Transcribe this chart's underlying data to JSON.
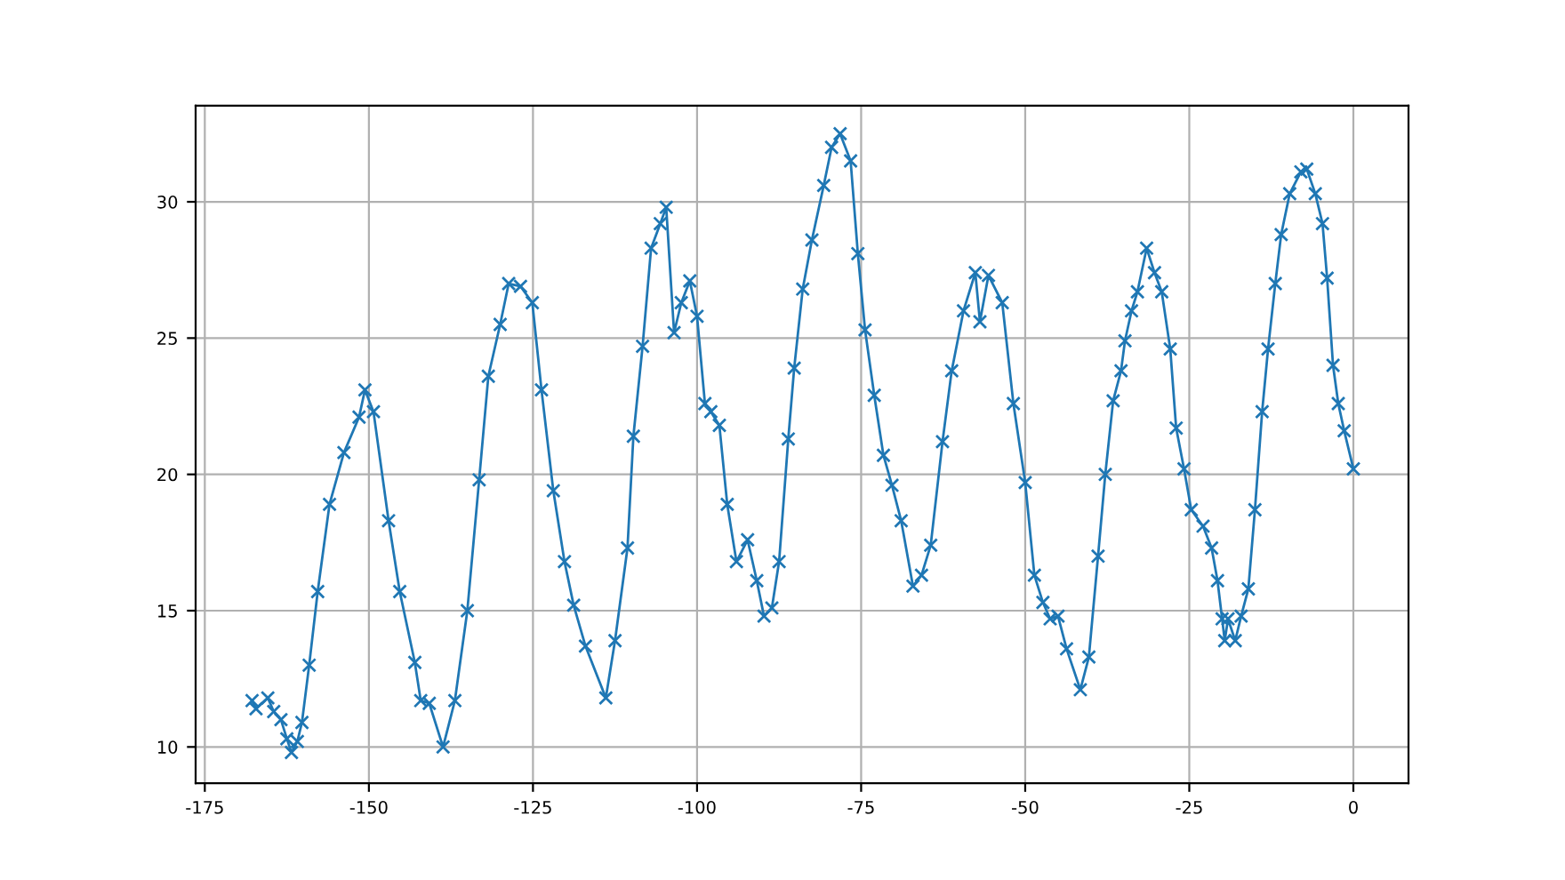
{
  "chart_data": {
    "type": "line",
    "marker": "cross",
    "line_style": "solid",
    "grid": true,
    "xlim": [
      -176.4,
      8.4
    ],
    "ylim": [
      8.67,
      33.53
    ],
    "xticks": [
      -175,
      -150,
      -125,
      -100,
      -75,
      -50,
      -25,
      0
    ],
    "yticks": [
      10,
      15,
      20,
      25,
      30
    ],
    "series": [
      {
        "color": "#1f77b4",
        "x": [
          -167.8,
          -167.2,
          -165.4,
          -164.5,
          -163.4,
          -162.5,
          -161.8,
          -160.9,
          -160.2,
          -159.1,
          -157.8,
          -156,
          -153.8,
          -151.5,
          -150.6,
          -149.3,
          -147,
          -145.3,
          -143,
          -142.1,
          -140.8,
          -138.7,
          -136.9,
          -135,
          -133.2,
          -131.8,
          -130,
          -128.7,
          -126.9,
          -125.1,
          -123.7,
          -121.9,
          -120.2,
          -118.8,
          -117,
          -113.9,
          -112.5,
          -110.6,
          -109.7,
          -108.3,
          -107,
          -105.6,
          -104.7,
          -103.5,
          -102.4,
          -101.1,
          -100,
          -98.8,
          -97.9,
          -96.6,
          -95.4,
          -94,
          -92.3,
          -90.9,
          -89.8,
          -88.6,
          -87.5,
          -86.1,
          -85.2,
          -83.9,
          -82.5,
          -80.7,
          -79.5,
          -78.2,
          -76.6,
          -75.5,
          -74.4,
          -73,
          -71.6,
          -70.3,
          -68.9,
          -67.1,
          -65.8,
          -64.4,
          -62.6,
          -61.2,
          -59.4,
          -57.6,
          -56.9,
          -55.6,
          -53.5,
          -51.8,
          -50,
          -48.6,
          -47.3,
          -46.2,
          -45,
          -43.7,
          -41.6,
          -40.3,
          -38.9,
          -37.8,
          -36.6,
          -35.4,
          -34.8,
          -33.8,
          -32.9,
          -31.5,
          -30.3,
          -29.2,
          -27.9,
          -27,
          -25.8,
          -24.7,
          -22.9,
          -21.6,
          -20.7,
          -20,
          -19.6,
          -19.1,
          -18,
          -17.1,
          -16,
          -15,
          -13.9,
          -13,
          -11.9,
          -11,
          -9.7,
          -8,
          -7.1,
          -5.8,
          -4.7,
          -4,
          -3.1,
          -2.3,
          -1.4,
          0
        ],
        "values": [
          11.7,
          11.4,
          11.8,
          11.3,
          11.0,
          10.3,
          9.8,
          10.2,
          10.9,
          13.0,
          15.7,
          18.9,
          20.8,
          22.1,
          23.1,
          22.3,
          18.3,
          15.7,
          13.1,
          11.7,
          11.6,
          10.0,
          11.7,
          15.0,
          19.8,
          23.6,
          25.5,
          27.0,
          26.9,
          26.3,
          23.1,
          19.4,
          16.8,
          15.2,
          13.7,
          11.8,
          13.9,
          17.3,
          21.4,
          24.7,
          28.3,
          29.2,
          29.8,
          25.2,
          26.3,
          27.1,
          25.8,
          22.6,
          22.3,
          21.8,
          18.9,
          16.8,
          17.6,
          16.1,
          14.8,
          15.1,
          16.8,
          21.3,
          23.9,
          26.8,
          28.6,
          30.6,
          32.0,
          32.5,
          31.5,
          28.1,
          25.3,
          22.9,
          20.7,
          19.6,
          18.3,
          15.9,
          16.3,
          17.4,
          21.2,
          23.8,
          26.0,
          27.4,
          25.6,
          27.3,
          26.3,
          22.6,
          19.7,
          16.3,
          15.3,
          14.7,
          14.8,
          13.6,
          12.1,
          13.3,
          17.0,
          20.0,
          22.7,
          23.8,
          24.9,
          26.0,
          26.7,
          28.3,
          27.4,
          26.7,
          24.6,
          21.7,
          20.2,
          18.7,
          18.1,
          17.3,
          16.1,
          14.7,
          13.9,
          14.7,
          13.9,
          14.8,
          15.8,
          18.7,
          22.3,
          24.6,
          27.0,
          28.8,
          30.3,
          31.1,
          31.2,
          30.3,
          29.2,
          27.2,
          24.0,
          22.6,
          21.6,
          20.2
        ]
      }
    ]
  }
}
